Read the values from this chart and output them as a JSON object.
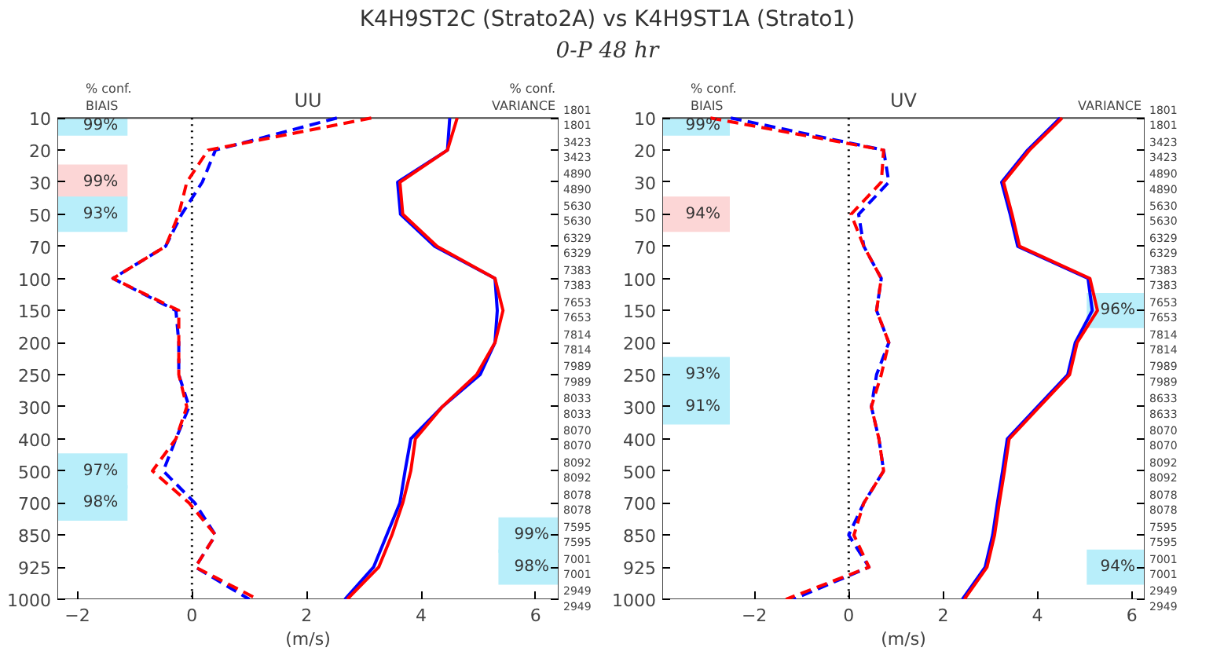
{
  "chart_data": [
    {
      "type": "other",
      "title": "K4H9ST2C (Strato2A) vs K4H9ST1A (Strato1)",
      "subtitle": "0-P 48 hr"
    },
    {
      "type": "line",
      "orientation": "horizontal",
      "title": "UU",
      "ylabel": "% conf.\nBIAIS",
      "y2label": "% conf.\nVARIANCE",
      "xlabel": "(m/s)",
      "categories": [
        "10",
        "20",
        "30",
        "50",
        "70",
        "100",
        "150",
        "200",
        "250",
        "300",
        "400",
        "500",
        "700",
        "850",
        "925",
        "1000"
      ],
      "xlim": [
        -2.35,
        6.4
      ],
      "xticks": [
        {
          "value": -2,
          "label": "−2"
        },
        0,
        2,
        4,
        6
      ],
      "series": [
        {
          "color": "#0000ff",
          "line_style": "dashed",
          "values": [
            2.53,
            0.41,
            0.18,
            -0.18,
            -0.46,
            -1.38,
            -0.28,
            -0.23,
            -0.23,
            -0.05,
            -0.28,
            -0.5,
            0.05,
            0.41,
            0.06,
            1.0
          ]
        },
        {
          "color": "#ff0000",
          "line_style": "dashed",
          "values": [
            3.13,
            0.28,
            -0.09,
            -0.23,
            -0.46,
            -1.38,
            -0.23,
            -0.23,
            -0.23,
            -0.09,
            -0.28,
            -0.69,
            -0.05,
            0.41,
            0.06,
            1.15
          ]
        },
        {
          "color": "#0000ff",
          "line_style": "solid",
          "values": [
            4.5,
            4.46,
            3.59,
            3.64,
            4.24,
            5.29,
            5.33,
            5.29,
            5.03,
            4.37,
            3.82,
            3.72,
            3.63,
            3.4,
            3.17,
            2.67
          ]
        },
        {
          "color": "#ff0000",
          "line_style": "solid",
          "values": [
            4.63,
            4.46,
            3.63,
            3.68,
            4.28,
            5.29,
            5.43,
            5.29,
            4.97,
            4.37,
            3.9,
            3.82,
            3.68,
            3.49,
            3.26,
            2.71
          ]
        }
      ],
      "ref_lines": [
        {
          "axis": "x",
          "value": 0,
          "color": "#000000",
          "line_style": "dotted"
        }
      ],
      "bands": [
        {
          "axis": "y",
          "from": "850",
          "to": "850",
          "label": "99%",
          "color": "#b8eefa"
        },
        {
          "axis": "y",
          "from": "925",
          "to": "925",
          "label": "98%",
          "color": "#b8eefa"
        },
        {
          "axis": "y",
          "from": "10",
          "to": "10",
          "label": "99%",
          "color": "#b8eefa"
        },
        {
          "axis": "y",
          "from": "30",
          "to": "30",
          "label": "99%",
          "color": "#fcd6d6"
        },
        {
          "axis": "y",
          "from": "50",
          "to": "50",
          "label": "93%",
          "color": "#b8eefa"
        },
        {
          "axis": "y",
          "from": "500",
          "to": "500",
          "label": "97%",
          "color": "#b8eefa"
        },
        {
          "axis": "y",
          "from": "700",
          "to": "700",
          "label": "98%",
          "color": "#b8eefa"
        }
      ],
      "annotations": [
        "1801\n1801",
        "3423\n3423",
        "4890\n4890",
        "5630\n5630",
        "6329\n6329",
        "7383\n7383",
        "7653\n7653",
        "7814\n7814",
        "7989\n7989",
        "8033\n8033",
        "8070\n8070",
        "8092\n8092",
        "8078\n8078",
        "7595\n7595",
        "7001\n7001",
        "2949\n2949"
      ]
    },
    {
      "type": "line",
      "orientation": "horizontal",
      "title": "UV",
      "ylabel": "% conf.\nBIAIS",
      "y2label": "VARIANCE",
      "xlabel": "(m/s)",
      "categories": [
        "10",
        "20",
        "30",
        "50",
        "70",
        "100",
        "150",
        "200",
        "250",
        "300",
        "400",
        "500",
        "700",
        "850",
        "925",
        "1000"
      ],
      "xlim": [
        -3.95,
        6.27
      ],
      "xticks": [
        {
          "value": -2,
          "label": "−2"
        },
        0,
        2,
        4,
        6
      ],
      "series": [
        {
          "color": "#0000ff",
          "line_style": "dashed",
          "values": [
            -2.5,
            0.74,
            0.85,
            0.21,
            0.32,
            0.69,
            0.59,
            0.85,
            0.59,
            0.48,
            0.64,
            0.74,
            0.32,
            0.0,
            0.43,
            -1.17
          ]
        },
        {
          "color": "#ff0000",
          "line_style": "dashed",
          "values": [
            -2.93,
            0.74,
            0.69,
            0.05,
            0.32,
            0.69,
            0.59,
            0.85,
            0.69,
            0.48,
            0.64,
            0.74,
            0.32,
            0.11,
            0.43,
            -1.33
          ]
        },
        {
          "color": "#0000ff",
          "line_style": "solid",
          "values": [
            4.48,
            3.79,
            3.24,
            3.42,
            3.58,
            5.07,
            5.16,
            4.8,
            4.64,
            4.0,
            3.36,
            3.26,
            3.15,
            3.05,
            2.89,
            2.41
          ]
        },
        {
          "color": "#ff0000",
          "line_style": "solid",
          "values": [
            4.52,
            3.83,
            3.28,
            3.46,
            3.62,
            5.11,
            5.27,
            4.84,
            4.68,
            4.04,
            3.4,
            3.3,
            3.19,
            3.09,
            2.93,
            2.45
          ]
        }
      ],
      "ref_lines": [
        {
          "axis": "x",
          "value": 0,
          "color": "#000000",
          "line_style": "dotted"
        }
      ],
      "bands": [
        {
          "axis": "y",
          "from": "150",
          "to": "150",
          "label": "96%",
          "color": "#b8eefa"
        },
        {
          "axis": "y",
          "from": "925",
          "to": "925",
          "label": "94%",
          "color": "#b8eefa"
        },
        {
          "axis": "y",
          "from": "10",
          "to": "10",
          "label": "99%",
          "color": "#b8eefa"
        },
        {
          "axis": "y",
          "from": "50",
          "to": "50",
          "label": "94%",
          "color": "#fcd6d6"
        },
        {
          "axis": "y",
          "from": "250",
          "to": "250",
          "label": "93%",
          "color": "#b8eefa"
        },
        {
          "axis": "y",
          "from": "300",
          "to": "300",
          "label": "91%",
          "color": "#b8eefa"
        }
      ],
      "annotations": [
        "1801\n1801",
        "3423\n3423",
        "4890\n4890",
        "5630\n5630",
        "6329\n6329",
        "7383\n7383",
        "7653\n7653",
        "7814\n7814",
        "7989\n7989",
        "8633\n8633",
        "8070\n8070",
        "8092\n8092",
        "8078\n8078",
        "7595\n7595",
        "7001\n7001",
        "2949\n2949"
      ]
    }
  ]
}
